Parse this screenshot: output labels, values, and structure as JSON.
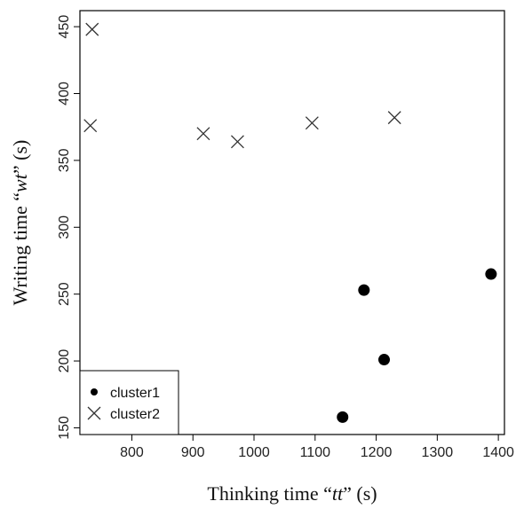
{
  "chart_data": {
    "type": "scatter",
    "xlabel_parts": [
      "Thinking time “",
      "tt",
      "” (s)"
    ],
    "ylabel_parts": [
      "Writing time “",
      "wt",
      "” (s)"
    ],
    "xlim": [
      715,
      1410
    ],
    "ylim": [
      145,
      462
    ],
    "xticks": [
      800,
      900,
      1000,
      1100,
      1200,
      1300,
      1400
    ],
    "yticks": [
      150,
      200,
      250,
      300,
      350,
      400,
      450
    ],
    "grid": false,
    "legend_position": "bottom-left",
    "series": [
      {
        "name": "cluster1",
        "marker": "filled-circle",
        "color": "#000000",
        "points": [
          {
            "x": 1145,
            "y": 158
          },
          {
            "x": 1180,
            "y": 253
          },
          {
            "x": 1213,
            "y": 201
          },
          {
            "x": 1388,
            "y": 265
          }
        ]
      },
      {
        "name": "cluster2",
        "marker": "x-cross",
        "color": "#333333",
        "points": [
          {
            "x": 735,
            "y": 448
          },
          {
            "x": 732,
            "y": 376
          },
          {
            "x": 917,
            "y": 370
          },
          {
            "x": 973,
            "y": 364
          },
          {
            "x": 1095,
            "y": 378
          },
          {
            "x": 1230,
            "y": 382
          }
        ]
      }
    ]
  }
}
